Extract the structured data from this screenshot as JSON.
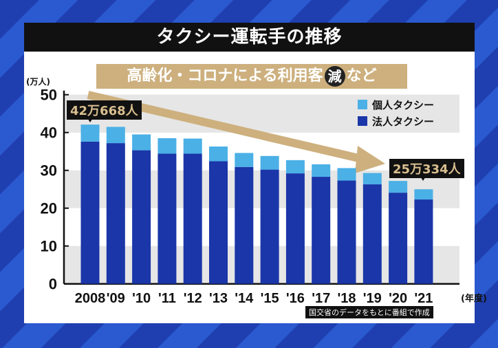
{
  "header": {
    "title": "タクシー運転手の推移",
    "subtitle_pre": "高齢化・コロナによる利用客",
    "subtitle_circled": "減",
    "subtitle_post": "など"
  },
  "source": "国交省のデータをもとに番組で作成",
  "colors": {
    "personal": "#4bb0e6",
    "corporate": "#1a36a8",
    "arrow": "#cdb07e",
    "band": "#e6e6e6"
  },
  "chart_data": {
    "type": "bar",
    "stacked": true,
    "ylabel": "(万人)",
    "xlabel": "(年度)",
    "ylim": [
      0,
      50
    ],
    "yticks": [
      0,
      10,
      20,
      30,
      40,
      50
    ],
    "categories": [
      "2008",
      "'09",
      "'10",
      "'11",
      "'12",
      "'13",
      "'14",
      "'15",
      "'16",
      "'17",
      "'18",
      "'19",
      "'20",
      "'21"
    ],
    "series": [
      {
        "name": "法人タクシー",
        "values": [
          37.6,
          37.2,
          35.3,
          34.4,
          34.4,
          32.4,
          30.9,
          30.2,
          29.2,
          28.3,
          27.3,
          26.3,
          24.1,
          22.3
        ]
      },
      {
        "name": "個人タクシー",
        "values": [
          4.5,
          4.3,
          4.2,
          4.1,
          4.0,
          3.9,
          3.7,
          3.6,
          3.5,
          3.3,
          3.3,
          3.0,
          3.1,
          2.7
        ]
      }
    ],
    "legend": [
      "個人タクシー",
      "法人タクシー"
    ],
    "legend_position": "top-right",
    "annotations": [
      {
        "category": "2008",
        "text": "42万668人"
      },
      {
        "category": "'21",
        "text": "25万334人"
      }
    ]
  }
}
